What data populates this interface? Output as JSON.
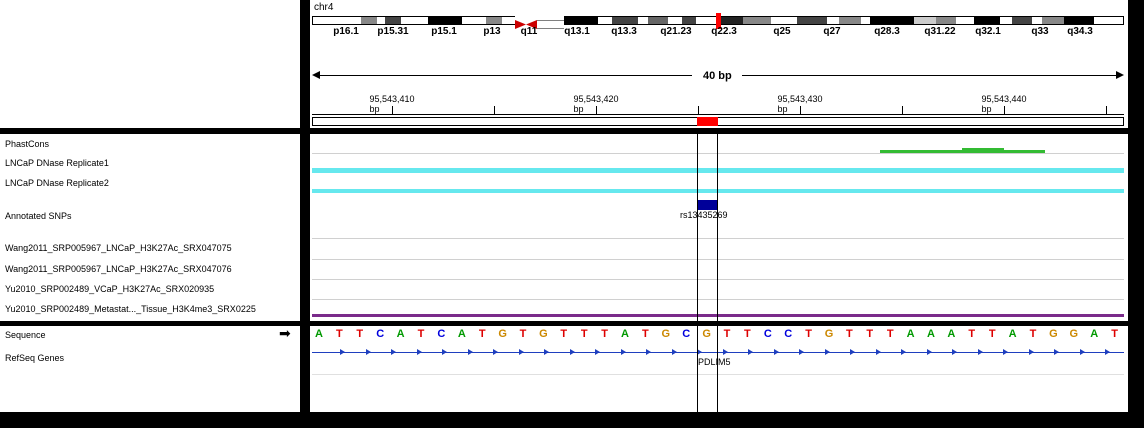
{
  "header": {
    "chromosome": "chr4",
    "span_label": "40 bp",
    "cytobands": [
      "p16.1",
      "p15.31",
      "p15.1",
      "p13",
      "q11",
      "q13.1",
      "q13.3",
      "q21.23",
      "q22.3",
      "q25",
      "q27",
      "q28.3",
      "q31.22",
      "q32.1",
      "q33",
      "q34.3"
    ],
    "ruler_ticks": [
      "95,543,410 bp",
      "95,543,420 bp",
      "95,543,430 bp",
      "95,543,440 bp"
    ]
  },
  "tracks": {
    "phastcons": "PhastCons",
    "dnase1": "LNCaP DNase Replicate1",
    "dnase2": "LNCaP DNase Replicate2",
    "snps": "Annotated SNPs",
    "wang1": "Wang2011_SRP005967_LNCaP_H3K27Ac_SRX047075",
    "wang2": "Wang2011_SRP005967_LNCaP_H3K27Ac_SRX047076",
    "yu1": "Yu2010_SRP002489_VCaP_H3K27Ac_SRX020935",
    "yu2": "Yu2010_SRP002489_Metastat..._Tissue_H3K4me3_SRX0225"
  },
  "feature_panel": {
    "sequence_label": "Sequence",
    "refseq_label": "RefSeq Genes",
    "strand_arrow": "➡"
  },
  "snp_name": "rs13435269",
  "gene_name": "PDLIM5",
  "sequence": [
    "A",
    "T",
    "T",
    "C",
    "A",
    "T",
    "C",
    "A",
    "T",
    "G",
    "T",
    "G",
    "T",
    "T",
    "T",
    "A",
    "T",
    "G",
    "C",
    "G",
    "T",
    "T",
    "C",
    "C",
    "T",
    "G",
    "T",
    "T",
    "T",
    "A",
    "A",
    "A",
    "T",
    "T",
    "A",
    "T",
    "G",
    "G",
    "A",
    "T"
  ],
  "colors": {
    "A": "#009900",
    "C": "#0000dd",
    "G": "#cc8800",
    "T": "#dd0000",
    "dnase": "#66e8ee",
    "phastcons": "#33bb33",
    "snp": "#000099",
    "histone": "#7a2a8a",
    "gene": "#1f3fbf",
    "region": "#ff0000"
  }
}
